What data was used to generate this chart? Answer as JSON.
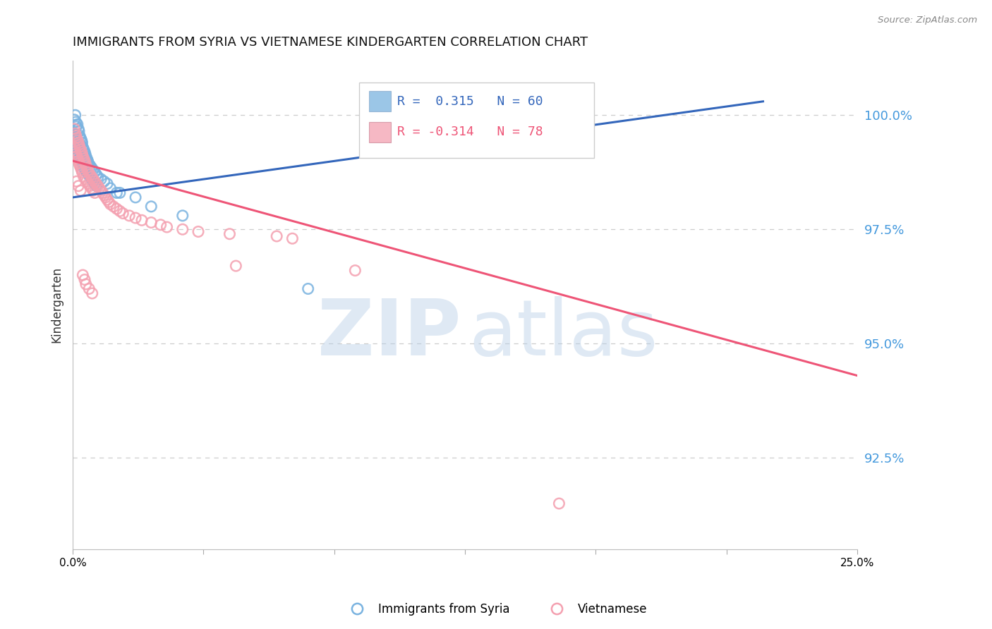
{
  "title": "IMMIGRANTS FROM SYRIA VS VIETNAMESE KINDERGARTEN CORRELATION CHART",
  "source": "Source: ZipAtlas.com",
  "ylabel": "Kindergarten",
  "right_ytick_labels": [
    "100.0%",
    "97.5%",
    "95.0%",
    "92.5%"
  ],
  "right_ytick_vals": [
    100.0,
    97.5,
    95.0,
    92.5
  ],
  "xlim": [
    0.0,
    25.0
  ],
  "ylim": [
    90.5,
    101.2
  ],
  "blue_R": 0.315,
  "blue_N": 60,
  "pink_R": -0.314,
  "pink_N": 78,
  "blue_color": "#7ab3e0",
  "pink_color": "#f4a0b0",
  "blue_line_color": "#3366bb",
  "pink_line_color": "#ee5577",
  "legend_blue_label": "Immigrants from Syria",
  "legend_pink_label": "Vietnamese",
  "background_color": "#ffffff",
  "grid_color": "#cccccc",
  "right_axis_color": "#4499dd",
  "title_fontsize": 13,
  "blue_trend_x": [
    0.0,
    22.0
  ],
  "blue_trend_y": [
    98.2,
    100.3
  ],
  "pink_trend_x": [
    0.0,
    25.0
  ],
  "pink_trend_y": [
    99.0,
    94.3
  ],
  "blue_x": [
    0.05,
    0.08,
    0.1,
    0.12,
    0.15,
    0.18,
    0.2,
    0.22,
    0.25,
    0.28,
    0.3,
    0.32,
    0.35,
    0.38,
    0.4,
    0.42,
    0.45,
    0.48,
    0.5,
    0.55,
    0.6,
    0.65,
    0.7,
    0.75,
    0.8,
    0.9,
    1.0,
    1.1,
    1.2,
    1.4,
    0.05,
    0.08,
    0.1,
    0.12,
    0.15,
    0.18,
    0.2,
    0.22,
    0.25,
    0.28,
    0.3,
    0.35,
    0.4,
    0.45,
    0.5,
    0.55,
    0.6,
    0.65,
    0.7,
    0.75,
    1.5,
    2.0,
    2.5,
    3.5,
    0.08,
    0.15,
    0.25,
    0.35,
    0.45,
    7.5
  ],
  "blue_y": [
    99.9,
    100.0,
    99.85,
    99.75,
    99.8,
    99.7,
    99.65,
    99.55,
    99.5,
    99.45,
    99.4,
    99.3,
    99.25,
    99.2,
    99.15,
    99.1,
    99.05,
    99.0,
    98.95,
    98.9,
    98.85,
    98.8,
    98.75,
    98.7,
    98.65,
    98.6,
    98.55,
    98.5,
    98.4,
    98.3,
    99.6,
    99.5,
    99.45,
    99.35,
    99.3,
    99.25,
    99.2,
    99.1,
    99.05,
    99.0,
    98.95,
    98.85,
    98.8,
    98.75,
    98.7,
    98.65,
    98.6,
    98.55,
    98.5,
    98.45,
    98.3,
    98.2,
    98.0,
    97.8,
    99.15,
    99.25,
    99.35,
    99.1,
    99.0,
    96.2
  ],
  "pink_x": [
    0.05,
    0.08,
    0.1,
    0.12,
    0.15,
    0.18,
    0.2,
    0.22,
    0.25,
    0.28,
    0.3,
    0.32,
    0.35,
    0.38,
    0.4,
    0.42,
    0.45,
    0.48,
    0.5,
    0.55,
    0.6,
    0.65,
    0.7,
    0.75,
    0.8,
    0.85,
    0.9,
    0.95,
    1.0,
    1.05,
    1.1,
    1.15,
    1.2,
    1.3,
    1.4,
    1.5,
    1.6,
    1.8,
    2.0,
    2.2,
    2.5,
    2.8,
    3.0,
    3.5,
    4.0,
    5.0,
    6.5,
    7.0,
    9.0,
    15.5,
    0.05,
    0.08,
    0.1,
    0.12,
    0.15,
    0.18,
    0.2,
    0.22,
    0.25,
    0.28,
    0.3,
    0.35,
    0.4,
    0.45,
    0.5,
    0.55,
    0.6,
    0.65,
    0.7,
    5.2,
    0.12,
    0.18,
    0.25,
    0.32,
    0.38,
    0.42,
    0.52,
    0.62
  ],
  "pink_y": [
    99.7,
    99.6,
    99.55,
    99.5,
    99.45,
    99.4,
    99.35,
    99.3,
    99.25,
    99.2,
    99.15,
    99.1,
    99.05,
    99.0,
    98.95,
    98.9,
    98.85,
    98.8,
    98.75,
    98.7,
    98.65,
    98.6,
    98.55,
    98.5,
    98.45,
    98.4,
    98.35,
    98.3,
    98.25,
    98.2,
    98.15,
    98.1,
    98.05,
    98.0,
    97.95,
    97.9,
    97.85,
    97.8,
    97.75,
    97.7,
    97.65,
    97.6,
    97.55,
    97.5,
    97.45,
    97.4,
    97.35,
    97.3,
    96.6,
    91.5,
    99.3,
    99.2,
    99.15,
    99.1,
    99.05,
    99.0,
    98.95,
    98.9,
    98.85,
    98.8,
    98.75,
    98.65,
    98.6,
    98.55,
    98.5,
    98.45,
    98.4,
    98.35,
    98.3,
    96.7,
    98.55,
    98.45,
    98.35,
    96.5,
    96.4,
    96.3,
    96.2,
    96.1
  ]
}
